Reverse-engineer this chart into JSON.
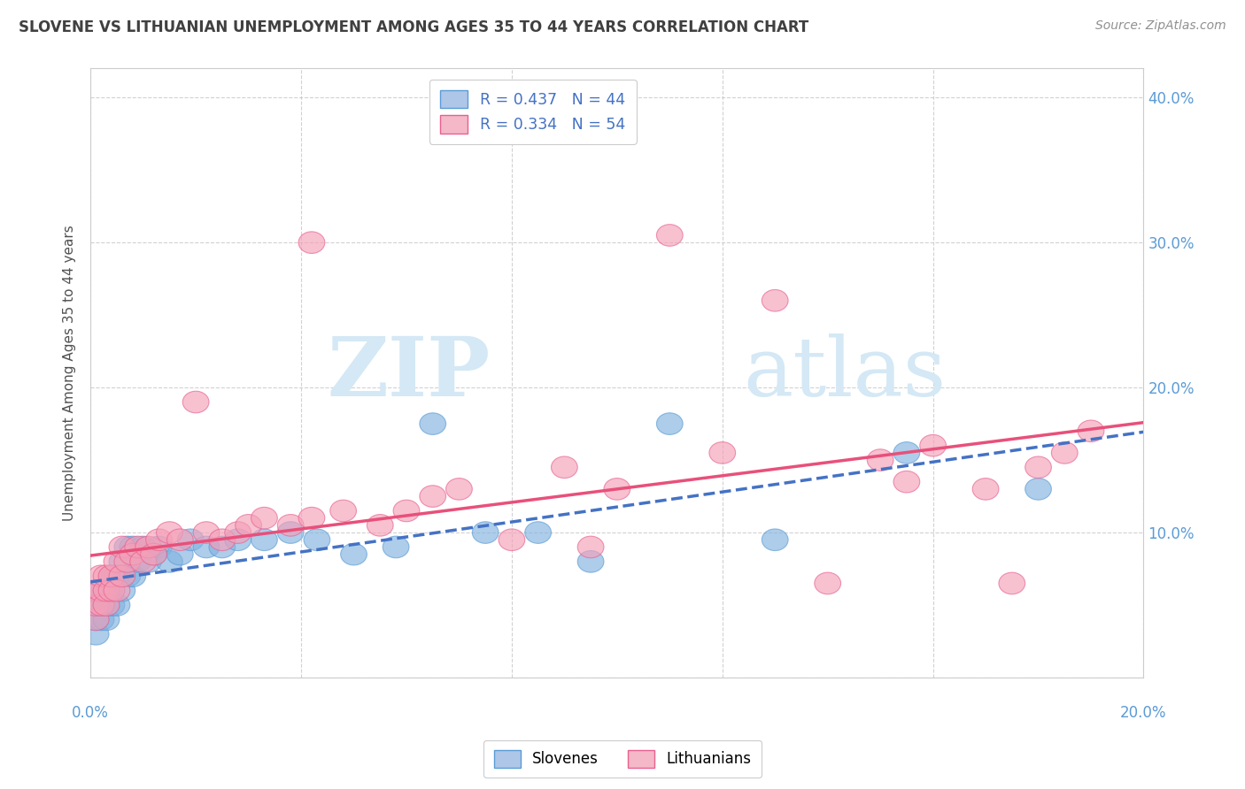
{
  "title": "SLOVENE VS LITHUANIAN UNEMPLOYMENT AMONG AGES 35 TO 44 YEARS CORRELATION CHART",
  "source": "Source: ZipAtlas.com",
  "ylabel": "Unemployment Among Ages 35 to 44 years",
  "ytick_labels": [
    "",
    "10.0%",
    "20.0%",
    "30.0%",
    "40.0%"
  ],
  "ytick_vals": [
    0.0,
    0.1,
    0.2,
    0.3,
    0.4
  ],
  "xlim": [
    0.0,
    0.2
  ],
  "ylim": [
    -0.01,
    0.42
  ],
  "plot_ylim": [
    0.0,
    0.42
  ],
  "legend1_labels": [
    "R = 0.437   N = 44",
    "R = 0.334   N = 54"
  ],
  "legend2_labels": [
    "Slovenes",
    "Lithuanians"
  ],
  "slovene_color": "#82b3e0",
  "lithuanian_color": "#f4a0b8",
  "slovene_edge_color": "#5b9bd5",
  "lithuanian_edge_color": "#e86090",
  "slovene_line_color": "#4472c4",
  "lithuanian_line_color": "#e8507a",
  "background_color": "#ffffff",
  "watermark_color": "#d4e8f5",
  "grid_color": "#cccccc",
  "title_color": "#404040",
  "source_color": "#909090",
  "axis_label_color": "#505050",
  "tick_color": "#5b9bd5",
  "slovene_x": [
    0.001,
    0.001,
    0.001,
    0.002,
    0.002,
    0.002,
    0.003,
    0.003,
    0.003,
    0.004,
    0.004,
    0.004,
    0.005,
    0.005,
    0.006,
    0.006,
    0.007,
    0.007,
    0.008,
    0.008,
    0.009,
    0.01,
    0.011,
    0.012,
    0.013,
    0.015,
    0.017,
    0.019,
    0.022,
    0.025,
    0.028,
    0.033,
    0.038,
    0.043,
    0.05,
    0.058,
    0.065,
    0.075,
    0.085,
    0.095,
    0.11,
    0.13,
    0.155,
    0.18
  ],
  "slovene_y": [
    0.03,
    0.04,
    0.05,
    0.04,
    0.05,
    0.06,
    0.04,
    0.05,
    0.06,
    0.05,
    0.06,
    0.07,
    0.05,
    0.07,
    0.06,
    0.08,
    0.07,
    0.09,
    0.07,
    0.09,
    0.08,
    0.09,
    0.08,
    0.085,
    0.09,
    0.08,
    0.085,
    0.095,
    0.09,
    0.09,
    0.095,
    0.095,
    0.1,
    0.095,
    0.085,
    0.09,
    0.175,
    0.1,
    0.1,
    0.08,
    0.175,
    0.095,
    0.155,
    0.13
  ],
  "lithuanian_x": [
    0.001,
    0.001,
    0.001,
    0.002,
    0.002,
    0.002,
    0.003,
    0.003,
    0.003,
    0.004,
    0.004,
    0.005,
    0.005,
    0.006,
    0.006,
    0.007,
    0.008,
    0.009,
    0.01,
    0.011,
    0.012,
    0.013,
    0.015,
    0.017,
    0.02,
    0.022,
    0.025,
    0.028,
    0.03,
    0.033,
    0.038,
    0.042,
    0.048,
    0.055,
    0.042,
    0.06,
    0.065,
    0.07,
    0.08,
    0.09,
    0.095,
    0.1,
    0.11,
    0.12,
    0.13,
    0.14,
    0.15,
    0.16,
    0.155,
    0.17,
    0.175,
    0.18,
    0.185,
    0.19
  ],
  "lithuanian_y": [
    0.04,
    0.05,
    0.06,
    0.05,
    0.06,
    0.07,
    0.05,
    0.06,
    0.07,
    0.06,
    0.07,
    0.06,
    0.08,
    0.07,
    0.09,
    0.08,
    0.085,
    0.09,
    0.08,
    0.09,
    0.085,
    0.095,
    0.1,
    0.095,
    0.19,
    0.1,
    0.095,
    0.1,
    0.105,
    0.11,
    0.105,
    0.11,
    0.115,
    0.105,
    0.3,
    0.115,
    0.125,
    0.13,
    0.095,
    0.145,
    0.09,
    0.13,
    0.305,
    0.155,
    0.26,
    0.065,
    0.15,
    0.16,
    0.135,
    0.13,
    0.065,
    0.145,
    0.155,
    0.17
  ]
}
